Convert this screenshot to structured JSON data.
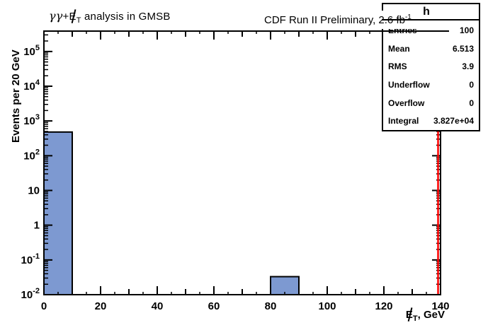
{
  "header": {
    "cdf_label": {
      "text": "CDF Run II Preliminary, 2.6 fb",
      "exponent": "-1"
    }
  },
  "stats": {
    "title": "h",
    "rows": [
      {
        "label": "Entries",
        "value": "100"
      },
      {
        "label": "Mean",
        "value": "6.513"
      },
      {
        "label": "RMS",
        "value": "3.9"
      },
      {
        "label": "Underflow",
        "value": "0"
      },
      {
        "label": "Overflow",
        "value": "0"
      },
      {
        "label": "Integral",
        "value": "3.827e+04"
      }
    ]
  },
  "chart_data": {
    "type": "bar",
    "title": "γγ+E̸T analysis in GMSB",
    "title_parts": {
      "gammas": "γγ",
      "plus": "+",
      "slashed": "E",
      "sub": "T",
      "rest": " analysis in GMSB"
    },
    "xlabel": "E̸T, GeV",
    "xlabel_parts": {
      "slashed": "E",
      "sub": "T",
      "rest": ", GeV"
    },
    "ylabel": "Events per 20 GeV",
    "bin_edges": [
      0,
      10,
      20,
      30,
      40,
      50,
      60,
      70,
      80,
      90,
      100,
      110,
      120,
      130,
      140
    ],
    "values": [
      480,
      0,
      0,
      0,
      0,
      0,
      0,
      0,
      0.033,
      0,
      0,
      0,
      0,
      0
    ],
    "xlim": [
      0,
      140
    ],
    "ylim": [
      0.01,
      386000
    ],
    "yscale": "log",
    "x_major_ticks": [
      0,
      20,
      40,
      60,
      80,
      100,
      120,
      140
    ],
    "x_mid_step": 10,
    "x_minor_step": 5,
    "y_tick_exponents": [
      5,
      4,
      3,
      2,
      1,
      0,
      -1,
      -2
    ],
    "grid": false,
    "legend": false,
    "colors": {
      "bar_fill": "#7d99d1",
      "bar_stroke": "#000000",
      "frame": "#000000",
      "right_edge_line": "#ff0000",
      "text": "#000000"
    }
  }
}
